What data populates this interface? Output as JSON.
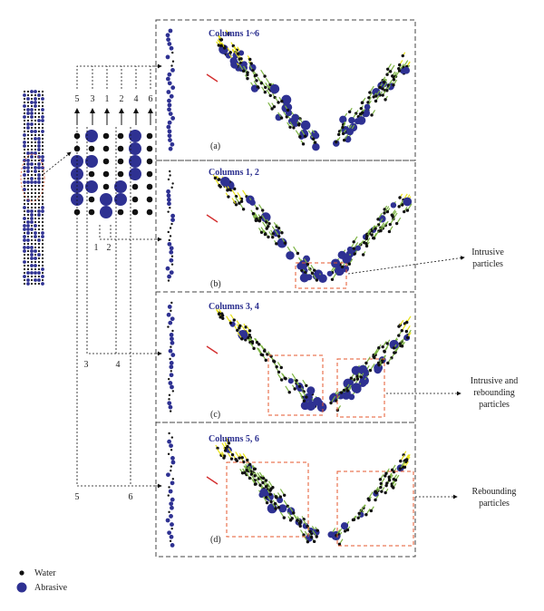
{
  "panels": [
    {
      "title": "Columns 1~6",
      "tag": "(a)"
    },
    {
      "title": "Columns 1, 2",
      "tag": "(b)"
    },
    {
      "title": "Columns 3, 4",
      "tag": "(c)"
    },
    {
      "title": "Columns 5, 6",
      "tag": "(d)"
    }
  ],
  "column_order_top": [
    "5",
    "3",
    "1",
    "2",
    "4",
    "6"
  ],
  "column_labels": {
    "c1": "1",
    "c2": "2",
    "c3": "3",
    "c4": "4",
    "c5": "5",
    "c6": "6"
  },
  "annotations": {
    "intrusive": [
      "Intrusive",
      "particles"
    ],
    "intrusive_rebounding": [
      "Intrusive and",
      "rebounding",
      "particles"
    ],
    "rebounding": [
      "Rebounding",
      "particles"
    ]
  },
  "legend": {
    "water": "Water",
    "abrasive": "Abrasive"
  },
  "colors": {
    "water": "#111111",
    "abrasive": "#2e3192",
    "panel_title": "#2b2f8f",
    "highlight_box": "#e4572e",
    "vector_green": "#7cb342",
    "vector_yellow": "#e8e21a",
    "vector_red": "#d32f2f"
  }
}
